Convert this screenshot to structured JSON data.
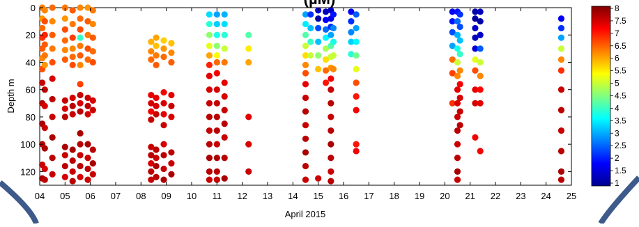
{
  "chart_data": {
    "type": "scatter",
    "title": "(µM)",
    "xlabel": "April 2015",
    "ylabel": "Depth m",
    "x_ticks": [
      "04",
      "05",
      "06",
      "07",
      "08",
      "09",
      "10",
      "11",
      "12",
      "13",
      "14",
      "15",
      "16",
      "17",
      "18",
      "19",
      "20",
      "21",
      "22",
      "23",
      "24",
      "25"
    ],
    "xlim": [
      4,
      25
    ],
    "ylim": [
      130,
      0
    ],
    "y_ticks": [
      0,
      20,
      40,
      60,
      80,
      100,
      120
    ],
    "colorbar": {
      "ticks": [
        "8",
        "7.5",
        "7",
        "6.5",
        "6",
        "5.5",
        "5",
        "4.5",
        "4",
        "3.5",
        "3",
        "2.5",
        "2",
        "1.5",
        "1"
      ],
      "range": [
        1,
        8
      ],
      "colormap": "jet"
    },
    "marker_color_rule": "value",
    "casts": [
      {
        "day": 4.1,
        "depth": [
          0,
          8,
          15,
          22,
          30,
          37,
          45,
          55,
          70,
          85,
          100,
          115,
          125
        ],
        "value": [
          6.3,
          6.1,
          6.4,
          6.8,
          6.5,
          6.2,
          6.6,
          7.5,
          7.6,
          7.7,
          7.6,
          7.5,
          7.7
        ]
      },
      {
        "day": 4.2,
        "depth": [
          2,
          10,
          20,
          27,
          35,
          42,
          60,
          72,
          88,
          103,
          118,
          126
        ],
        "value": [
          6.2,
          6.6,
          6.9,
          6.5,
          6.3,
          6.1,
          7.6,
          7.4,
          7.5,
          7.7,
          7.4,
          7.6
        ]
      },
      {
        "day": 4.5,
        "depth": [
          0,
          10,
          20,
          30,
          40,
          52,
          67,
          80,
          95,
          110,
          122
        ],
        "value": [
          6.4,
          6.2,
          6.5,
          6.3,
          6.6,
          7.4,
          7.6,
          7.5,
          7.7,
          7.6,
          7.5
        ]
      },
      {
        "day": 5.0,
        "depth": [
          0,
          8,
          16,
          24,
          31,
          38,
          68,
          74,
          80,
          102,
          108,
          116,
          124
        ],
        "value": [
          6.3,
          6.1,
          6.6,
          6.4,
          6.2,
          6.5,
          7.5,
          7.4,
          7.6,
          7.7,
          7.5,
          7.6,
          7.4
        ]
      },
      {
        "day": 5.3,
        "depth": [
          2,
          12,
          22,
          30,
          36,
          42,
          66,
          72,
          78,
          104,
          112,
          120,
          127
        ],
        "value": [
          6.5,
          6.3,
          6.7,
          6.2,
          6.4,
          6.6,
          7.4,
          7.6,
          7.5,
          7.7,
          7.6,
          7.5,
          7.6
        ]
      },
      {
        "day": 5.6,
        "depth": [
          0,
          8,
          16,
          22,
          28,
          35,
          42,
          56,
          64,
          70,
          76,
          92,
          100,
          108,
          116,
          124
        ],
        "value": [
          6.2,
          6.4,
          6.6,
          4.0,
          6.3,
          6.5,
          6.2,
          6.7,
          7.5,
          7.4,
          7.6,
          7.7,
          7.6,
          7.5,
          7.6,
          7.4
        ]
      },
      {
        "day": 5.9,
        "depth": [
          0,
          10,
          20,
          30,
          38,
          66,
          72,
          78,
          100,
          110,
          118,
          126
        ],
        "value": [
          6.1,
          6.5,
          6.3,
          6.6,
          6.4,
          7.5,
          7.6,
          7.4,
          7.7,
          7.5,
          7.6,
          7.5
        ]
      },
      {
        "day": 6.1,
        "depth": [
          2,
          12,
          22,
          32,
          40,
          68,
          75,
          104,
          114,
          122
        ],
        "value": [
          6.3,
          6.2,
          6.5,
          6.4,
          6.6,
          7.4,
          7.5,
          7.6,
          7.7,
          7.5
        ]
      },
      {
        "day": 8.4,
        "depth": [
          25,
          32,
          38,
          64,
          70,
          76,
          82,
          102,
          108,
          114,
          120,
          126
        ],
        "value": [
          5.9,
          6.2,
          6.4,
          7.3,
          7.4,
          7.2,
          7.5,
          7.5,
          7.6,
          7.4,
          7.6,
          7.5
        ]
      },
      {
        "day": 8.6,
        "depth": [
          22,
          28,
          35,
          42,
          66,
          72,
          78,
          104,
          110,
          116,
          124
        ],
        "value": [
          6.0,
          5.8,
          6.3,
          6.5,
          7.3,
          7.4,
          7.5,
          7.6,
          7.5,
          7.7,
          7.6
        ]
      },
      {
        "day": 8.9,
        "depth": [
          24,
          30,
          36,
          62,
          70,
          78,
          86,
          100,
          108,
          118,
          126
        ],
        "value": [
          5.7,
          6.1,
          6.4,
          7.2,
          7.4,
          7.3,
          7.5,
          7.4,
          7.6,
          7.5,
          7.7
        ]
      },
      {
        "day": 9.2,
        "depth": [
          26,
          33,
          40,
          64,
          72,
          80,
          106,
          114,
          122
        ],
        "value": [
          5.8,
          6.2,
          6.5,
          7.3,
          7.5,
          7.4,
          7.6,
          7.5,
          7.7
        ]
      },
      {
        "day": 10.7,
        "depth": [
          5,
          12,
          20,
          28,
          35,
          42,
          50,
          60,
          70,
          80,
          90,
          100,
          110,
          120,
          126
        ],
        "value": [
          3.4,
          3.9,
          4.6,
          5.2,
          6.0,
          6.9,
          7.3,
          7.4,
          7.5,
          7.6,
          7.5,
          7.6,
          7.7,
          7.6,
          7.5
        ]
      },
      {
        "day": 11.0,
        "depth": [
          5,
          12,
          20,
          28,
          35,
          40,
          48,
          60,
          70,
          80,
          90,
          100,
          110,
          120,
          126
        ],
        "value": [
          3.0,
          3.3,
          3.8,
          4.6,
          5.4,
          6.4,
          7.2,
          7.4,
          7.5,
          7.6,
          7.6,
          7.5,
          7.7,
          7.6,
          7.5
        ]
      },
      {
        "day": 11.3,
        "depth": [
          5,
          12,
          20,
          30,
          40,
          55,
          65,
          75,
          85,
          95,
          110,
          125
        ],
        "value": [
          3.1,
          3.4,
          3.9,
          5.0,
          6.3,
          7.3,
          7.4,
          7.5,
          7.6,
          7.5,
          7.6,
          7.7
        ]
      },
      {
        "day": 12.25,
        "depth": [
          20,
          30,
          40,
          80,
          100,
          120
        ],
        "value": [
          4.2,
          5.5,
          6.0,
          7.3,
          7.4,
          7.5
        ]
      },
      {
        "day": 14.5,
        "depth": [
          5,
          12,
          20,
          28,
          35,
          42,
          48,
          56,
          66,
          76,
          86,
          96,
          106,
          116,
          126
        ],
        "value": [
          3.0,
          3.5,
          4.2,
          5.0,
          5.6,
          6.2,
          6.6,
          7.3,
          7.5,
          7.6,
          7.5,
          7.6,
          7.7,
          7.6,
          7.5
        ]
      },
      {
        "day": 14.7,
        "depth": [
          5,
          15,
          25,
          35
        ],
        "value": [
          2.2,
          3.2,
          4.0,
          5.0
        ]
      },
      {
        "day": 15.0,
        "depth": [
          2,
          8,
          15,
          25,
          35,
          45,
          125
        ],
        "value": [
          1.6,
          1.3,
          2.4,
          3.2,
          4.6,
          5.8,
          7.5
        ]
      },
      {
        "day": 15.3,
        "depth": [
          3,
          9,
          16,
          22,
          30,
          38,
          46,
          55
        ],
        "value": [
          1.4,
          1.8,
          2.6,
          3.6,
          4.8,
          5.6,
          6.4,
          7.0
        ]
      },
      {
        "day": 15.5,
        "depth": [
          2,
          8,
          14,
          20,
          28,
          36,
          44,
          52,
          60,
          70,
          80,
          90,
          100,
          110,
          120,
          127
        ],
        "value": [
          1.5,
          1.7,
          2.2,
          3.0,
          4.2,
          5.0,
          6.1,
          7.2,
          7.5,
          7.6,
          7.5,
          7.6,
          7.7,
          7.6,
          7.5,
          7.6
        ]
      },
      {
        "day": 15.6,
        "depth": [
          5,
          15,
          25,
          35,
          45
        ],
        "value": [
          2.0,
          2.8,
          3.8,
          5.0,
          6.2
        ]
      },
      {
        "day": 16.3,
        "depth": [
          3,
          10,
          18,
          25,
          34
        ],
        "value": [
          1.8,
          2.2,
          2.8,
          3.3,
          3.9
        ]
      },
      {
        "day": 16.5,
        "depth": [
          5,
          15,
          25,
          35,
          45,
          55,
          65,
          75,
          100,
          105
        ],
        "value": [
          2.5,
          3.0,
          3.6,
          4.4,
          5.2,
          6.6,
          7.0,
          7.2,
          7.0,
          7.2
        ]
      },
      {
        "day": 20.3,
        "depth": [
          3,
          10,
          18,
          28,
          38,
          48,
          70
        ],
        "value": [
          1.8,
          2.0,
          2.4,
          3.0,
          6.4,
          6.7,
          6.8
        ]
      },
      {
        "day": 20.5,
        "depth": [
          3,
          10,
          20,
          30,
          40,
          50,
          60,
          70,
          80,
          90,
          100,
          110,
          120,
          126
        ],
        "value": [
          2.0,
          2.6,
          3.1,
          3.8,
          5.0,
          6.2,
          7.3,
          7.4,
          7.5,
          7.6,
          7.5,
          7.6,
          7.7,
          7.5
        ]
      },
      {
        "day": 20.6,
        "depth": [
          5,
          14,
          24,
          34,
          46,
          56,
          66,
          76,
          86
        ],
        "value": [
          2.2,
          2.4,
          3.2,
          4.0,
          6.2,
          7.2,
          7.4,
          7.5,
          7.6
        ]
      },
      {
        "day": 21.2,
        "depth": [
          3,
          8,
          15,
          22,
          30,
          38,
          46,
          60,
          70,
          95
        ],
        "value": [
          1.3,
          1.2,
          1.5,
          1.4,
          1.6,
          5.2,
          6.6,
          7.3,
          7.4,
          7.2
        ]
      },
      {
        "day": 21.4,
        "depth": [
          3,
          10,
          20,
          30,
          40,
          50,
          60,
          70,
          105
        ],
        "value": [
          1.4,
          1.3,
          1.5,
          2.5,
          5.0,
          6.2,
          7.1,
          7.3,
          7.2
        ]
      },
      {
        "day": 24.6,
        "depth": [
          8,
          15,
          22,
          30,
          38,
          46,
          60,
          75,
          90,
          105,
          120,
          126
        ],
        "value": [
          1.8,
          2.2,
          3.0,
          5.0,
          6.2,
          6.8,
          7.5,
          7.6,
          7.5,
          7.6,
          7.7,
          7.6
        ]
      }
    ]
  }
}
